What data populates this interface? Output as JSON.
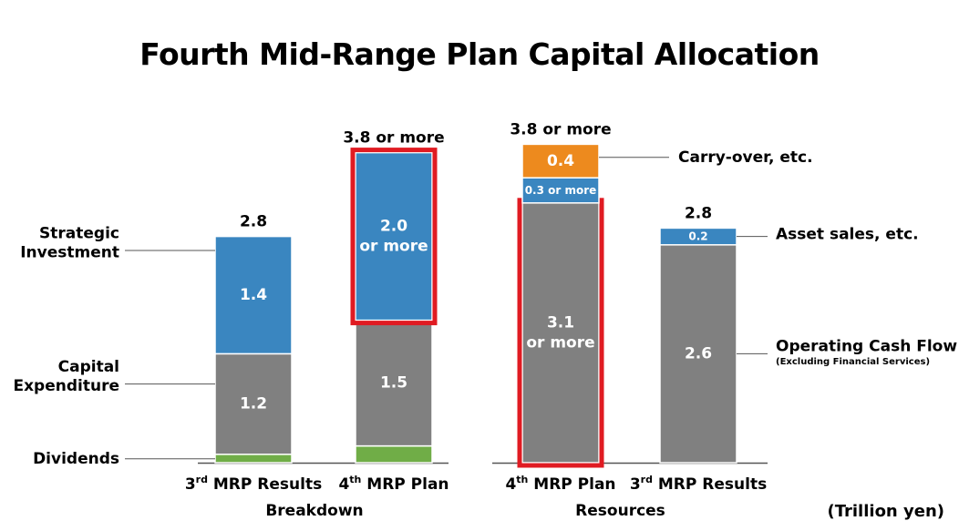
{
  "chart_data": {
    "type": "stacked-bar",
    "title": "Fourth Mid-Range Plan Capital Allocation",
    "unit": "(Trillion yen)",
    "colors": {
      "blue": "#3a86c0",
      "gray": "#808080",
      "green": "#70ad47",
      "orange": "#ed8a1e",
      "highlight": "#e01b22",
      "axis": "#555555"
    },
    "panels": [
      {
        "name": "Breakdown",
        "bars": [
          {
            "category_prefix": "3",
            "category_sup": "rd",
            "category_suffix": " MRP Results",
            "total_label": "2.8",
            "segments": [
              {
                "name": "Dividends",
                "value": 0.1,
                "label": "",
                "color": "green"
              },
              {
                "name": "Capital Expenditure",
                "value": 1.2,
                "label": "1.2",
                "color": "gray"
              },
              {
                "name": "Strategic Investment",
                "value": 1.4,
                "label": "1.4",
                "color": "blue"
              }
            ]
          },
          {
            "category_prefix": "4",
            "category_sup": "th",
            "category_suffix": " MRP Plan",
            "total_label": "3.8 or more",
            "segments": [
              {
                "name": "Dividends",
                "value": 0.2,
                "label": "",
                "color": "green"
              },
              {
                "name": "Capital Expenditure",
                "value": 1.5,
                "label": "1.5",
                "color": "gray"
              },
              {
                "name": "Strategic Investment",
                "value": 2.0,
                "label": "2.0\nor more",
                "color": "blue",
                "highlight": true
              }
            ]
          }
        ],
        "legend_left": [
          "Strategic\nInvestment",
          "Capital\nExpenditure",
          "Dividends"
        ]
      },
      {
        "name": "Resources",
        "bars": [
          {
            "category_prefix": "4",
            "category_sup": "th",
            "category_suffix": " MRP Plan",
            "total_label": "3.8 or more",
            "segments": [
              {
                "name": "Operating Cash Flow",
                "value": 3.1,
                "label": "3.1\nor more",
                "color": "gray",
                "highlight": true
              },
              {
                "name": "Asset sales, etc.",
                "value": 0.3,
                "label": "0.3 or more",
                "color": "blue"
              },
              {
                "name": "Carry-over, etc.",
                "value": 0.4,
                "label": "0.4",
                "color": "orange"
              }
            ]
          },
          {
            "category_prefix": "3",
            "category_sup": "rd",
            "category_suffix": " MRP Results",
            "total_label": "2.8",
            "segments": [
              {
                "name": "Operating Cash Flow",
                "value": 2.6,
                "label": "2.6",
                "color": "gray"
              },
              {
                "name": "Asset sales, etc.",
                "value": 0.2,
                "label": "0.2",
                "color": "blue"
              }
            ]
          }
        ],
        "legend_right": {
          "carry_over": "Carry-over, etc.",
          "asset_sales": "Asset sales, etc.",
          "operating_cf": "Operating Cash Flow",
          "operating_cf_note": "(Excluding Financial Services)"
        }
      }
    ]
  }
}
